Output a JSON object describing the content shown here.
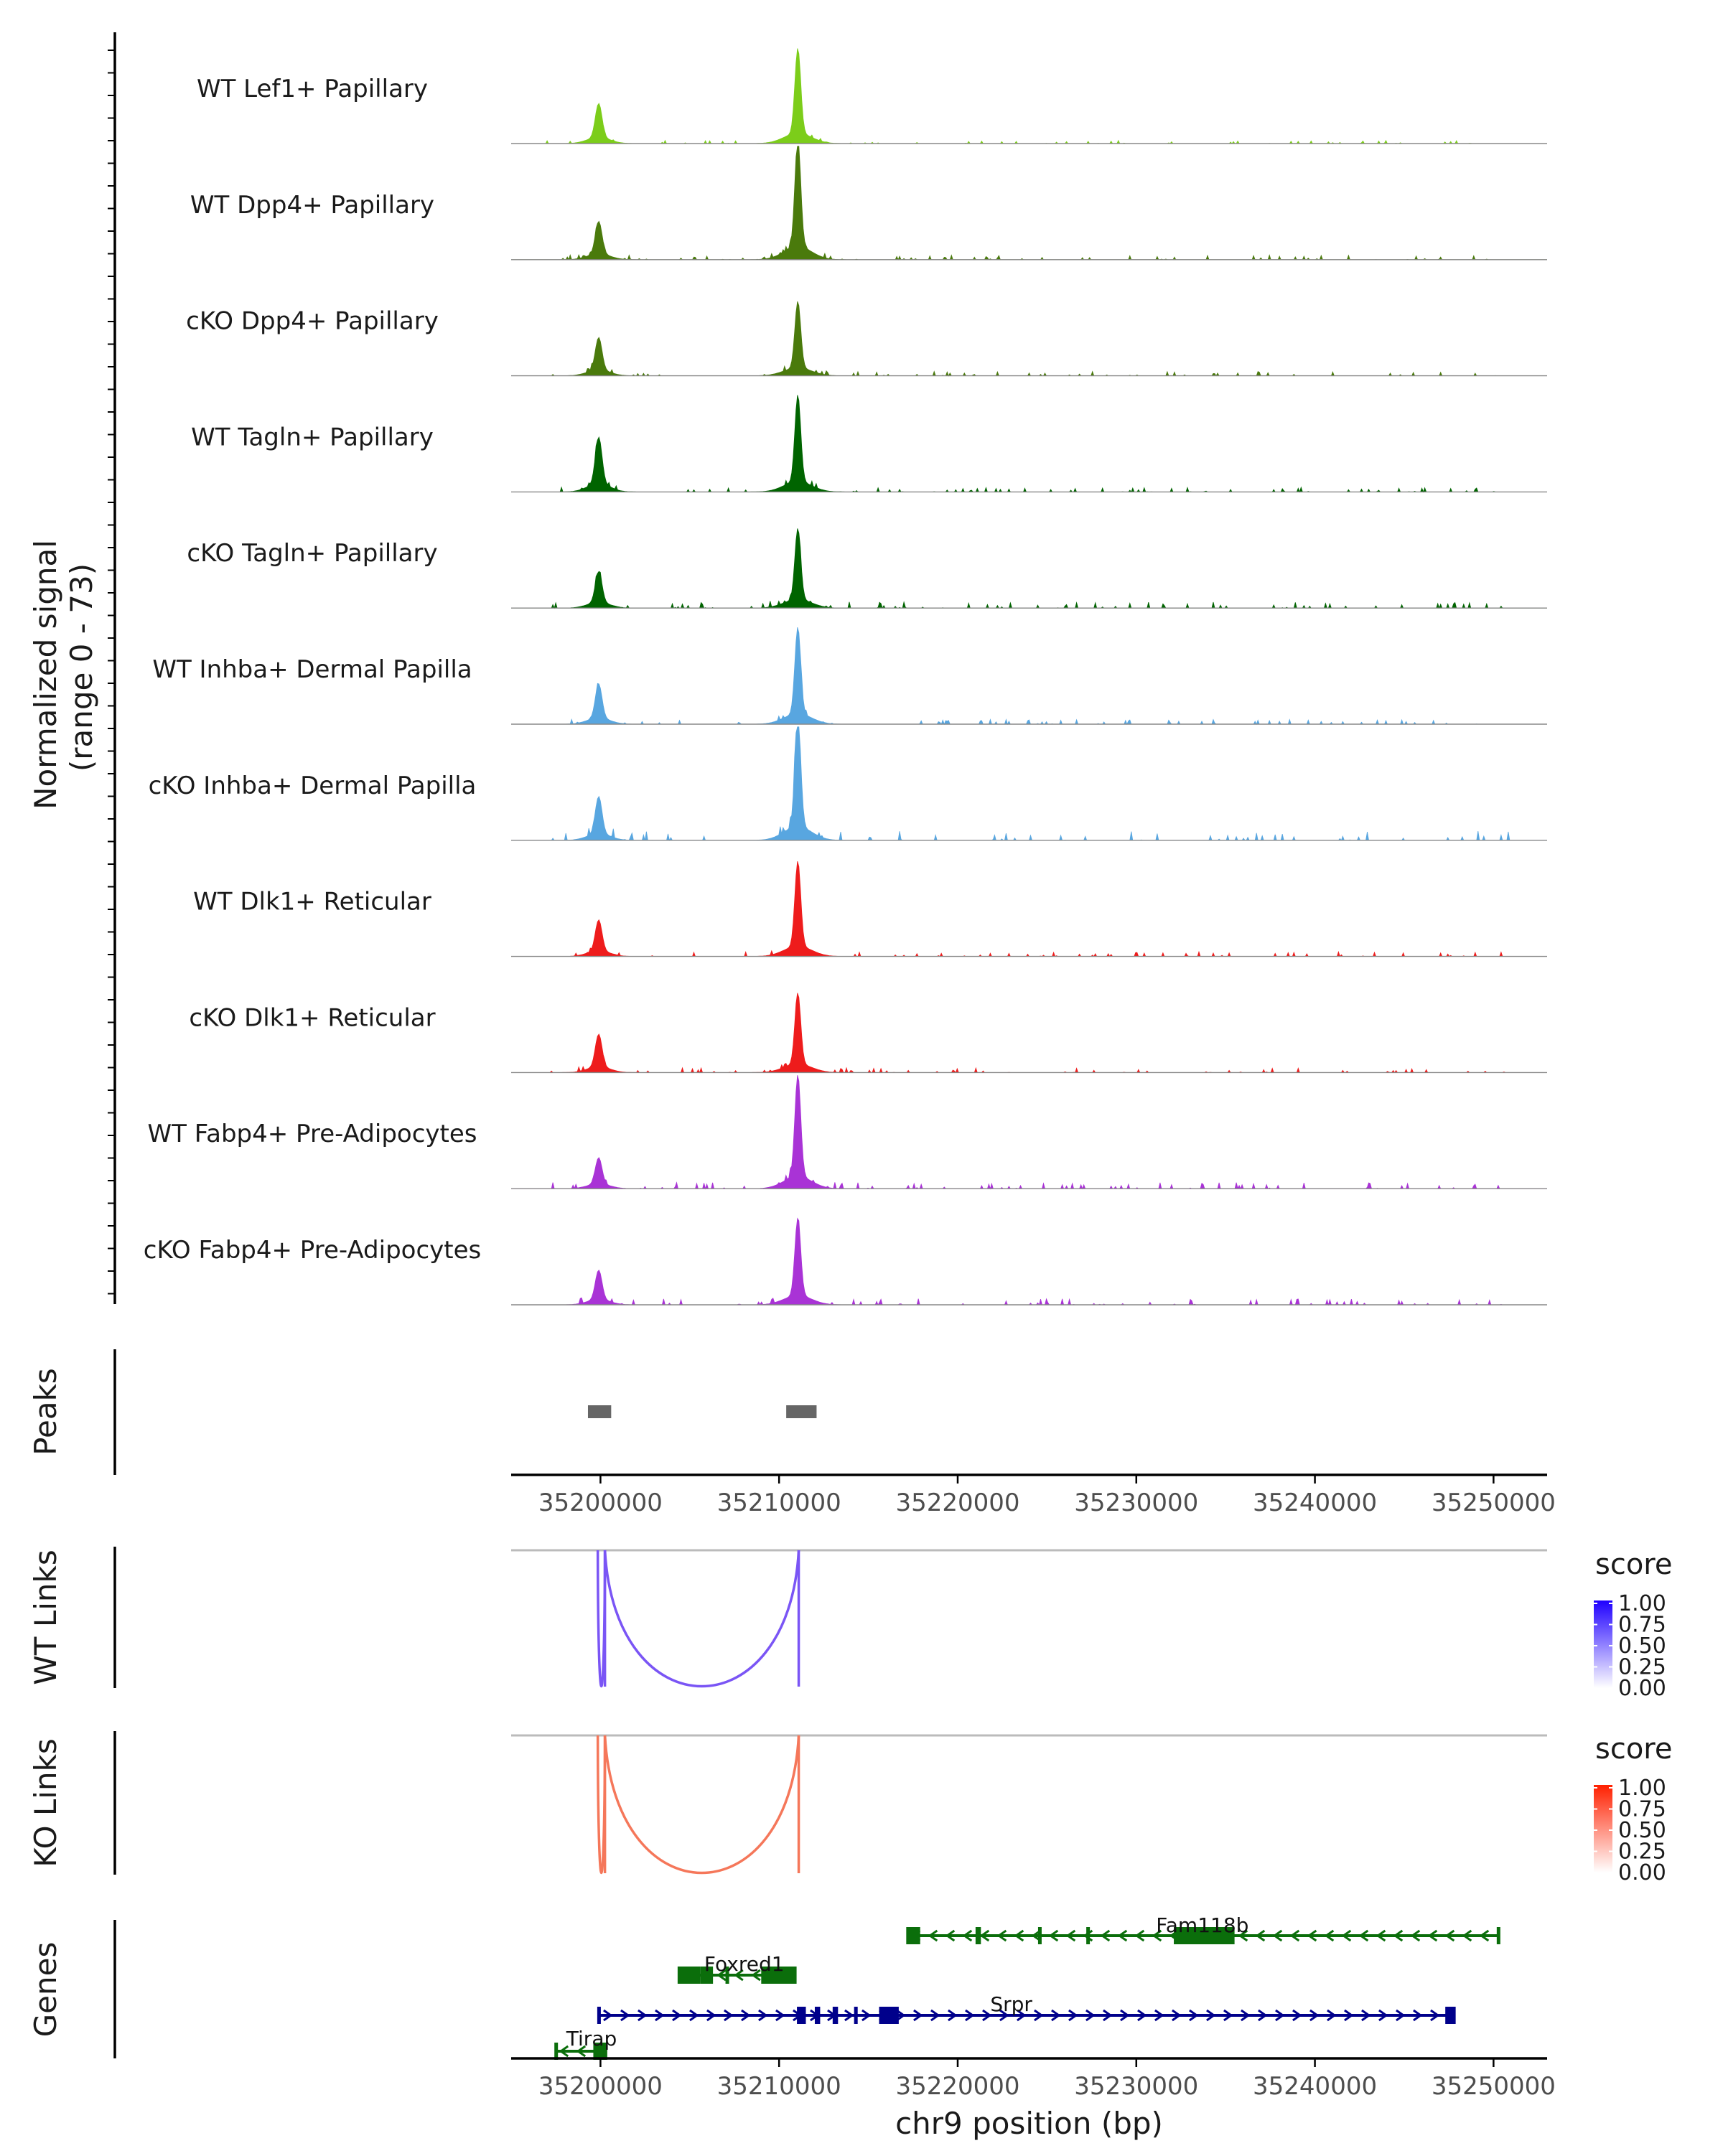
{
  "chart_data": {
    "type": "area",
    "title": "",
    "chromosome": "chr9",
    "xlabel": "chr9 position (bp)",
    "xlim": [
      35195000,
      35253000
    ],
    "x_ticks": [
      35200000,
      35210000,
      35220000,
      35230000,
      35240000,
      35250000
    ],
    "x_tick_labels": [
      "35200000",
      "35210000",
      "35220000",
      "35230000",
      "35240000",
      "35250000"
    ],
    "coverage": {
      "ylabel": "Normalized signal",
      "ylabel_range": "(range 0 - 73)",
      "ylim": [
        0,
        73
      ],
      "tracks": [
        {
          "name": "WT Lef1+ Papillary",
          "color": "#7ccd1a",
          "peak1": 22,
          "peak2": 55,
          "noise": 2
        },
        {
          "name": "WT Dpp4+ Papillary",
          "color": "#4a7a0c",
          "peak1": 21,
          "peak2": 70,
          "noise": 3
        },
        {
          "name": "cKO Dpp4+ Papillary",
          "color": "#4a7a0c",
          "peak1": 21,
          "peak2": 43,
          "noise": 3
        },
        {
          "name": "WT Tagln+ Papillary",
          "color": "#006400",
          "peak1": 30,
          "peak2": 56,
          "noise": 3
        },
        {
          "name": "cKO Tagln+ Papillary",
          "color": "#006400",
          "peak1": 20,
          "peak2": 46,
          "noise": 4
        },
        {
          "name": "WT Inhba+ Dermal Papilla",
          "color": "#58a6e0",
          "peak1": 22,
          "peak2": 56,
          "noise": 3
        },
        {
          "name": "cKO Inhba+ Dermal Papilla",
          "color": "#58a6e0",
          "peak1": 24,
          "peak2": 73,
          "noise": 6
        },
        {
          "name": "WT Dlk1+ Reticular",
          "color": "#ee1c1c",
          "peak1": 20,
          "peak2": 55,
          "noise": 3
        },
        {
          "name": "cKO Dlk1+ Reticular",
          "color": "#ee1c1c",
          "peak1": 21,
          "peak2": 46,
          "noise": 3
        },
        {
          "name": "WT Fabp4+ Pre-Adipocytes",
          "color": "#a933d6",
          "peak1": 17,
          "peak2": 66,
          "noise": 4
        },
        {
          "name": "cKO Fabp4+ Pre-Adipocytes",
          "color": "#a933d6",
          "peak1": 19,
          "peak2": 50,
          "noise": 4
        }
      ]
    },
    "peaks": {
      "label": "Peaks",
      "color": "#666666",
      "regions": [
        [
          35199300,
          35200600
        ],
        [
          35210400,
          35212100
        ]
      ]
    },
    "links": [
      {
        "label": "WT Links",
        "legend_title": "score",
        "gradient": [
          "#ffffff",
          "#1f00ff"
        ],
        "legend_ticks": [
          "1.00",
          "0.75",
          "0.50",
          "0.25",
          "0.00"
        ],
        "color": "#7a55f5",
        "arcs": [
          {
            "start": 35199850,
            "end": 35200250,
            "score": 0.6
          },
          {
            "start": 35200250,
            "end": 35211100,
            "score": 0.6
          }
        ]
      },
      {
        "label": "KO Links",
        "legend_title": "score",
        "gradient": [
          "#ffffff",
          "#ff2000"
        ],
        "legend_ticks": [
          "1.00",
          "0.75",
          "0.50",
          "0.25",
          "0.00"
        ],
        "color": "#f5775a",
        "arcs": [
          {
            "start": 35199850,
            "end": 35200250,
            "score": 0.6
          },
          {
            "start": 35200250,
            "end": 35211100,
            "score": 0.6
          }
        ]
      }
    ],
    "genes": {
      "label": "Genes",
      "items": [
        {
          "name": "Fam118b",
          "start": 35217200,
          "end": 35250300,
          "strand": "-",
          "color": "#0b6e0b",
          "row": 0,
          "exons": [
            [
              35217200,
              35217900
            ],
            [
              35232100,
              35235500
            ],
            [
              35221000,
              35221300
            ],
            [
              35224500,
              35224700
            ],
            [
              35227200,
              35227400
            ]
          ]
        },
        {
          "name": "Foxred1",
          "start": 35204400,
          "end": 35210900,
          "strand": "-",
          "color": "#0b6e0b",
          "row": 1,
          "exons": [
            [
              35204400,
              35205600
            ],
            [
              35205600,
              35206300
            ],
            [
              35209000,
              35210900
            ],
            [
              35207000,
              35207200
            ]
          ]
        },
        {
          "name": "Srpr",
          "start": 35199900,
          "end": 35247800,
          "strand": "+",
          "color": "#00008b",
          "row": 2,
          "exons": [
            [
              35211000,
              35211500
            ],
            [
              35212000,
              35212300
            ],
            [
              35213000,
              35213300
            ],
            [
              35214200,
              35214400
            ],
            [
              35215600,
              35216700
            ],
            [
              35247300,
              35247800
            ]
          ]
        },
        {
          "name": "Tirap",
          "start": 35197500,
          "end": 35200300,
          "strand": "-",
          "color": "#0b6e0b",
          "row": 3,
          "exons": [
            [
              35199600,
              35200300
            ]
          ]
        }
      ]
    }
  }
}
